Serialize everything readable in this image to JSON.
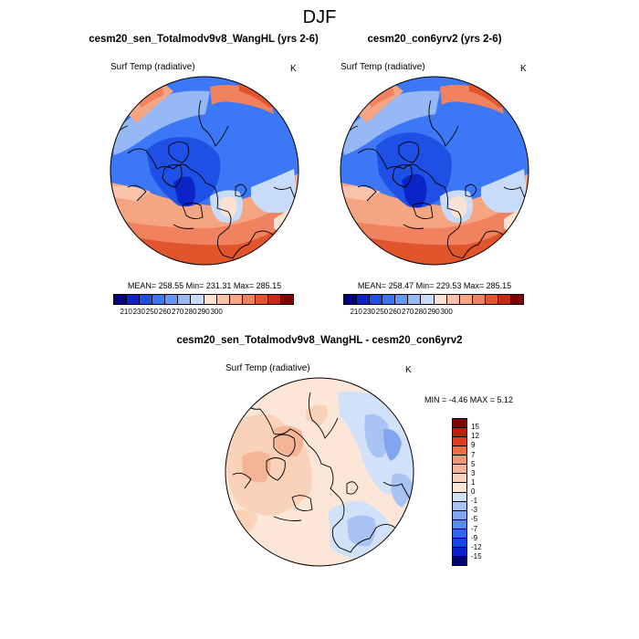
{
  "figure": {
    "title": "DJF"
  },
  "colors": {
    "abs_scale": [
      "#00007f",
      "#0a24c8",
      "#1e50e6",
      "#3c78f5",
      "#6496f5",
      "#96b9f5",
      "#c8dcfa",
      "#fae1d2",
      "#fac3aa",
      "#f5a582",
      "#f0825f",
      "#e1552d",
      "#c82814",
      "#7f0000"
    ],
    "diff_scale": [
      "#00007f",
      "#0a20c8",
      "#1446e6",
      "#2d64f0",
      "#5a8cf0",
      "#82a5f0",
      "#aac3f5",
      "#d2e1fa",
      "#fbe6d7",
      "#fad2b9",
      "#f5b496",
      "#f09678",
      "#eb6e46",
      "#e13c1e",
      "#be1e0a",
      "#7f0000"
    ]
  },
  "chart_data": [
    {
      "type": "heatmap",
      "projection": "polar-stereographic-north",
      "title": "cesm20_sen_Totalmodv9v8_WangHL (yrs 2-6)",
      "left_label": "Surf Temp (radiative)",
      "units": "K",
      "stats": {
        "mean": 258.55,
        "min": 231.31,
        "max": 285.15
      },
      "stats_text": "MEAN= 258.55  Min= 231.31  Max= 285.15",
      "colorbar": {
        "orientation": "horizontal",
        "labels": [
          "210",
          "230",
          "250",
          "260",
          "270",
          "280",
          "290",
          "300"
        ]
      }
    },
    {
      "type": "heatmap",
      "projection": "polar-stereographic-north",
      "title": "cesm20_con6yrv2 (yrs 2-6)",
      "left_label": "Surf Temp (radiative)",
      "units": "K",
      "stats": {
        "mean": 258.47,
        "min": 229.53,
        "max": 285.15
      },
      "stats_text": "MEAN= 258.47  Min= 229.53  Max= 285.15",
      "colorbar": {
        "orientation": "horizontal",
        "labels": [
          "210",
          "230",
          "250",
          "260",
          "270",
          "280",
          "290",
          "300"
        ]
      }
    },
    {
      "type": "heatmap",
      "projection": "polar-stereographic-north",
      "title": "cesm20_sen_Totalmodv9v8_WangHL - cesm20_con6yrv2",
      "left_label": "Surf Temp (radiative)",
      "units": "K",
      "stats": {
        "min": -4.46,
        "max": 5.12
      },
      "stats_text": "MIN =  -4.46 MAX =   5.12",
      "colorbar": {
        "orientation": "vertical",
        "labels": [
          "15",
          "12",
          "9",
          "7",
          "5",
          "3",
          "1",
          "0",
          "-1",
          "-3",
          "-5",
          "-7",
          "-9",
          "-12",
          "-15"
        ]
      }
    }
  ]
}
